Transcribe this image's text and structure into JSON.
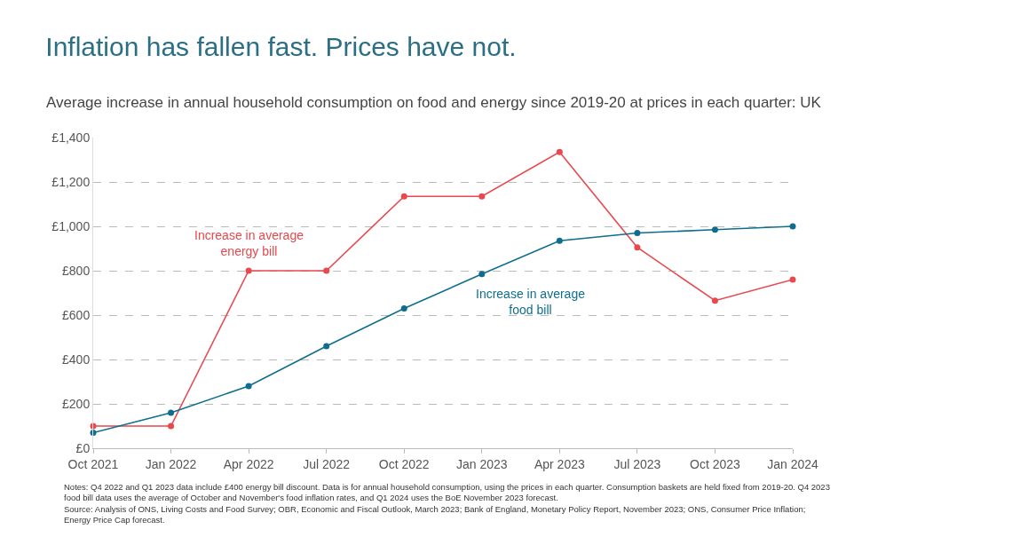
{
  "chart_data": {
    "type": "line",
    "title": "Inflation has fallen fast. Prices have not.",
    "subtitle": "Average increase in annual household consumption on food and energy since 2019-20 at prices in each quarter: UK",
    "categories": [
      "Oct 2021",
      "Jan 2022",
      "Apr 2022",
      "Jul 2022",
      "Oct 2022",
      "Jan 2023",
      "Apr 2023",
      "Jul 2023",
      "Oct 2023",
      "Jan 2024"
    ],
    "series": [
      {
        "name": "Increase in average energy bill",
        "color": "#e8484e",
        "values": [
          100,
          100,
          800,
          800,
          1135,
          1135,
          1335,
          905,
          665,
          760
        ]
      },
      {
        "name": "Increase in average food bill",
        "color": "#0f6e8c",
        "values": [
          70,
          160,
          280,
          460,
          630,
          785,
          935,
          970,
          985,
          1000
        ]
      }
    ],
    "ylim": [
      0,
      1400
    ],
    "yticks": [
      {
        "value": 0,
        "label": "£0"
      },
      {
        "value": 200,
        "label": "£200"
      },
      {
        "value": 400,
        "label": "£400"
      },
      {
        "value": 600,
        "label": "£600"
      },
      {
        "value": 800,
        "label": "£800"
      },
      {
        "value": 1000,
        "label": "£1,000"
      },
      {
        "value": 1200,
        "label": "£1,200"
      },
      {
        "value": 1400,
        "label": "£1,400"
      }
    ],
    "grid": "y",
    "marker": "circle",
    "line_style": "solid",
    "legend": false,
    "annotations": [
      "Notes: Q4 2022 and Q1 2023 data include £400 energy bill discount. Data is for annual household consumption, using the prices in each quarter. Consumption baskets are held fixed from 2019-20. Q4 2023\nfood bill data uses the average of October and November's food inflation rates, and Q1 2024 uses the BoE November 2023 forecast.\nSource: Analysis of ONS, Living Costs and Food Survey; OBR, Economic and Fiscal Outlook, March 2023; Bank of England, Monetary Policy Report, November 2023; ONS, Consumer Price Inflation;\nEnergy Price Cap forecast."
    ]
  }
}
